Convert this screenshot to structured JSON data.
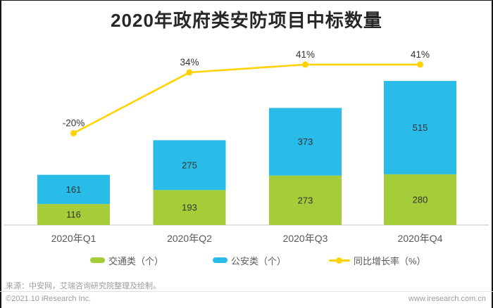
{
  "title": "2020年政府类安防项目中标数量",
  "colors": {
    "traffic": "#a5cd39",
    "police": "#29bce8",
    "growth": "#ffd200",
    "axis": "#d9d9d9",
    "border": "#141414"
  },
  "chart_data": {
    "type": "bar",
    "stacked": true,
    "title": "2020年政府类安防项目中标数量",
    "categories": [
      "2020年Q1",
      "2020年Q2",
      "2020年Q3",
      "2020年Q4"
    ],
    "series": [
      {
        "name": "交通类（个）",
        "type": "bar",
        "color": "#a5cd39",
        "values": [
          116,
          193,
          273,
          280
        ]
      },
      {
        "name": "公安类（个）",
        "type": "bar",
        "color": "#29bce8",
        "values": [
          161,
          275,
          373,
          515
        ]
      },
      {
        "name": "同比增长率（%）",
        "type": "line",
        "color": "#ffd200",
        "values": [
          -20,
          34,
          41,
          41
        ],
        "labels": [
          "-20%",
          "34%",
          "41%",
          "41%"
        ]
      }
    ],
    "xlabel": "",
    "ylabel": "",
    "grid": false,
    "legend_position": "bottom"
  },
  "footer": {
    "source": "来源：中安网，艾瑞咨询研究院整理及绘制。",
    "copyright": "©2021.10 iResearch Inc.",
    "website": "www.iresearch.com.cn"
  }
}
